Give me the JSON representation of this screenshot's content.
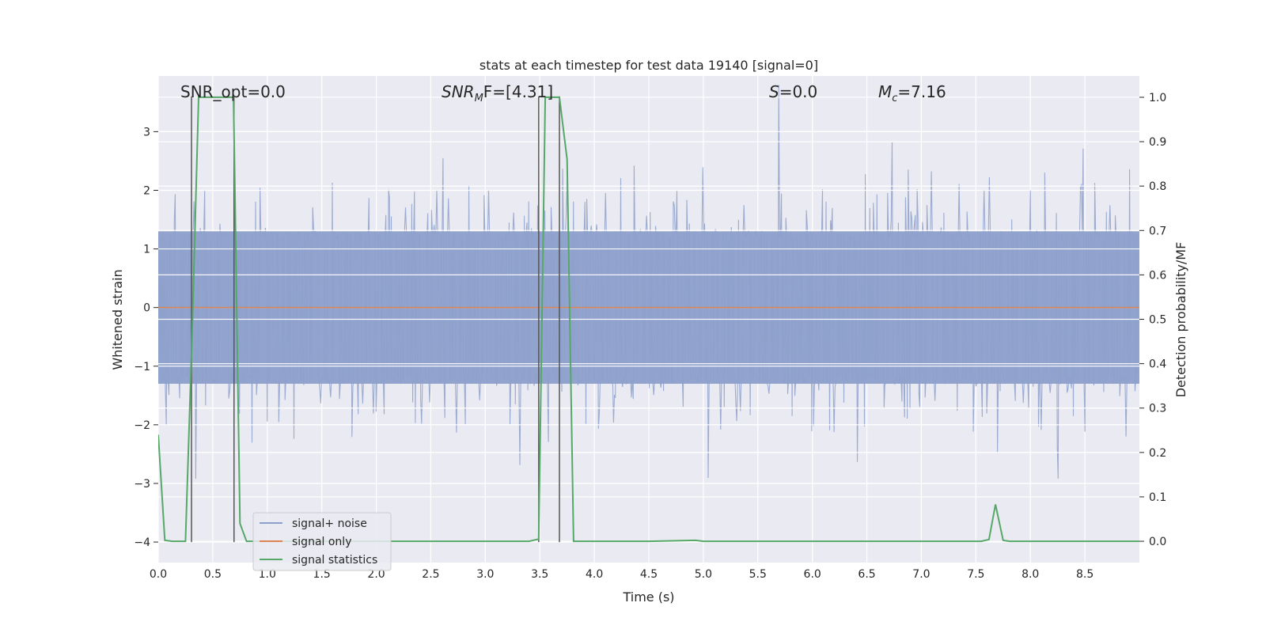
{
  "chart_data": {
    "type": "line",
    "title": "stats at each timestep for test data 19140 [signal=0]",
    "xlabel": "Time (s)",
    "ylabel": "Whitened strain",
    "y2label": "Detection probability/MF",
    "xlim": [
      0.0,
      9.0
    ],
    "ylim": [
      -4.35,
      3.95
    ],
    "y2lim": [
      -0.048,
      1.048
    ],
    "xticks": [
      0.0,
      0.5,
      1.0,
      1.5,
      2.0,
      2.5,
      3.0,
      3.5,
      4.0,
      4.5,
      5.0,
      5.5,
      6.0,
      6.5,
      7.0,
      7.5,
      8.0,
      8.5
    ],
    "xtick_labels": [
      "0.0",
      "0.5",
      "1.0",
      "1.5",
      "2.0",
      "2.5",
      "3.0",
      "3.5",
      "4.0",
      "4.5",
      "5.0",
      "5.5",
      "6.0",
      "6.5",
      "7.0",
      "7.5",
      "8.0",
      "8.5"
    ],
    "yticks": [
      -4,
      -3,
      -2,
      -1,
      0,
      1,
      2,
      3
    ],
    "ytick_labels": [
      "−4",
      "−3",
      "−2",
      "−1",
      "0",
      "1",
      "2",
      "3"
    ],
    "y2ticks": [
      0.0,
      0.1,
      0.2,
      0.3,
      0.4,
      0.5,
      0.6,
      0.7,
      0.8,
      0.9,
      1.0
    ],
    "y2tick_labels": [
      "0.0",
      "0.1",
      "0.2",
      "0.3",
      "0.4",
      "0.5",
      "0.6",
      "0.7",
      "0.8",
      "0.9",
      "1.0"
    ],
    "grid": true,
    "legend_position": "lower-left",
    "legend": [
      {
        "label": "signal+ noise",
        "color": "#8da0cb"
      },
      {
        "label": "signal only",
        "color": "#dd8452"
      },
      {
        "label": "signal statistics",
        "color": "#55a868"
      }
    ],
    "annotations": {
      "snr_opt": "SNR_opt=0.0",
      "snr_mf_main": "SNR",
      "snr_mf_sub": "M",
      "snr_mf_rest": "F=[4.31]",
      "s_main": "S",
      "s_rest": "=0.0",
      "mc_main": "M",
      "mc_sub": "c",
      "mc_rest": "=7.16"
    },
    "series": [
      {
        "name": "signal+ noise",
        "axis": "left",
        "style": "noise",
        "color": "#8da0cb",
        "x_range": [
          0.0,
          9.0
        ],
        "n_samples": 1100,
        "core_amplitude": 1.3,
        "peak_max": 3.8,
        "peak_min": -3.6
      },
      {
        "name": "signal only",
        "axis": "left",
        "color": "#dd8452",
        "x": [
          0.0,
          9.0
        ],
        "y": [
          0.0,
          0.0
        ]
      },
      {
        "name": "signal statistics",
        "axis": "right",
        "color": "#55a868",
        "x": [
          0.0,
          0.06,
          0.13,
          0.25,
          0.31,
          0.37,
          0.43,
          0.5,
          0.56,
          0.62,
          0.69,
          0.75,
          0.81,
          0.87,
          1.5,
          2.0,
          3.0,
          3.4,
          3.49,
          3.55,
          3.62,
          3.68,
          3.75,
          3.81,
          3.87,
          4.5,
          4.93,
          5.0,
          6.0,
          7.0,
          7.55,
          7.62,
          7.68,
          7.75,
          7.81,
          9.0
        ],
        "y": [
          0.24,
          0.002,
          0.0,
          0.0,
          0.46,
          1.0,
          1.0,
          1.0,
          1.0,
          1.0,
          1.0,
          0.04,
          0.0,
          0.0,
          0.0,
          0.0,
          0.0,
          0.0,
          0.005,
          1.0,
          1.0,
          1.0,
          0.86,
          0.0,
          0.0,
          0.0,
          0.002,
          0.0,
          0.0,
          0.0,
          0.0,
          0.004,
          0.083,
          0.002,
          0.0,
          0.0
        ]
      }
    ],
    "vertical_markers": [
      {
        "x": 0.305,
        "y_from": -4.0,
        "y_to": 3.6,
        "color": "#555555"
      },
      {
        "x": 0.695,
        "y_from": -4.0,
        "y_to": 3.6,
        "color": "#555555"
      },
      {
        "x": 3.49,
        "y_from": -4.0,
        "y_to": 3.6,
        "color": "#555555"
      },
      {
        "x": 3.68,
        "y_from": -4.0,
        "y_to": 3.6,
        "color": "#555555"
      }
    ],
    "colors": {
      "plot_background": "#eaeaf2",
      "grid": "#ffffff",
      "text": "#262626"
    }
  }
}
